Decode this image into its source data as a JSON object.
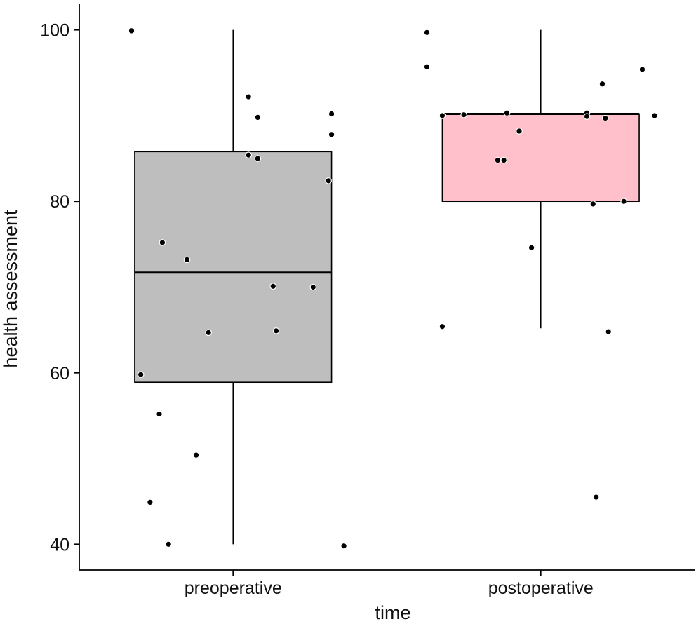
{
  "chart_data": {
    "type": "box",
    "xlabel": "time",
    "ylabel": "health assessment",
    "ylim": [
      37,
      103
    ],
    "yticks": [
      40,
      60,
      80,
      100
    ],
    "grid": false,
    "categories": [
      "preoperative",
      "postoperative"
    ],
    "boxes": [
      {
        "category": "preoperative",
        "fill": "#bebebe",
        "q1": 58.9,
        "median": 71.7,
        "q3": 85.8,
        "whisker_low": 40,
        "whisker_high": 100
      },
      {
        "category": "postoperative",
        "fill": "#ffc0cb",
        "q1": 80,
        "median": 90.2,
        "q3": 90.2,
        "whisker_low": 65.2,
        "whisker_high": 100
      }
    ],
    "points": [
      {
        "category": "preoperative",
        "jitter": -0.33,
        "y": 99.9
      },
      {
        "category": "preoperative",
        "jitter": 0.05,
        "y": 92.2
      },
      {
        "category": "preoperative",
        "jitter": 0.08,
        "y": 89.8
      },
      {
        "category": "preoperative",
        "jitter": 0.32,
        "y": 90.2
      },
      {
        "category": "preoperative",
        "jitter": 0.32,
        "y": 87.8
      },
      {
        "category": "preoperative",
        "jitter": 0.05,
        "y": 85.4
      },
      {
        "category": "preoperative",
        "jitter": 0.08,
        "y": 85.0
      },
      {
        "category": "preoperative",
        "jitter": 0.31,
        "y": 82.4
      },
      {
        "category": "preoperative",
        "jitter": -0.23,
        "y": 75.2
      },
      {
        "category": "preoperative",
        "jitter": -0.15,
        "y": 73.2
      },
      {
        "category": "preoperative",
        "jitter": 0.13,
        "y": 70.1
      },
      {
        "category": "preoperative",
        "jitter": 0.26,
        "y": 70.0
      },
      {
        "category": "preoperative",
        "jitter": -0.08,
        "y": 64.7
      },
      {
        "category": "preoperative",
        "jitter": 0.14,
        "y": 64.9
      },
      {
        "category": "preoperative",
        "jitter": -0.3,
        "y": 59.8
      },
      {
        "category": "preoperative",
        "jitter": -0.24,
        "y": 55.2
      },
      {
        "category": "preoperative",
        "jitter": -0.12,
        "y": 50.4
      },
      {
        "category": "preoperative",
        "jitter": -0.27,
        "y": 44.9
      },
      {
        "category": "preoperative",
        "jitter": -0.21,
        "y": 40.0
      },
      {
        "category": "preoperative",
        "jitter": 0.36,
        "y": 39.8
      },
      {
        "category": "postoperative",
        "jitter": -0.37,
        "y": 99.7
      },
      {
        "category": "postoperative",
        "jitter": -0.37,
        "y": 95.7
      },
      {
        "category": "postoperative",
        "jitter": 0.33,
        "y": 95.4
      },
      {
        "category": "postoperative",
        "jitter": 0.2,
        "y": 93.7
      },
      {
        "category": "postoperative",
        "jitter": -0.32,
        "y": 90.0
      },
      {
        "category": "postoperative",
        "jitter": -0.25,
        "y": 90.1
      },
      {
        "category": "postoperative",
        "jitter": -0.11,
        "y": 90.3
      },
      {
        "category": "postoperative",
        "jitter": 0.15,
        "y": 90.3
      },
      {
        "category": "postoperative",
        "jitter": 0.15,
        "y": 89.9
      },
      {
        "category": "postoperative",
        "jitter": 0.21,
        "y": 89.7
      },
      {
        "category": "postoperative",
        "jitter": 0.37,
        "y": 90.0
      },
      {
        "category": "postoperative",
        "jitter": -0.07,
        "y": 88.2
      },
      {
        "category": "postoperative",
        "jitter": -0.14,
        "y": 84.8
      },
      {
        "category": "postoperative",
        "jitter": -0.12,
        "y": 84.8
      },
      {
        "category": "postoperative",
        "jitter": 0.17,
        "y": 79.7
      },
      {
        "category": "postoperative",
        "jitter": 0.27,
        "y": 80.0
      },
      {
        "category": "postoperative",
        "jitter": -0.03,
        "y": 74.6
      },
      {
        "category": "postoperative",
        "jitter": -0.32,
        "y": 65.4
      },
      {
        "category": "postoperative",
        "jitter": 0.22,
        "y": 64.8
      },
      {
        "category": "postoperative",
        "jitter": 0.18,
        "y": 45.5
      }
    ]
  }
}
